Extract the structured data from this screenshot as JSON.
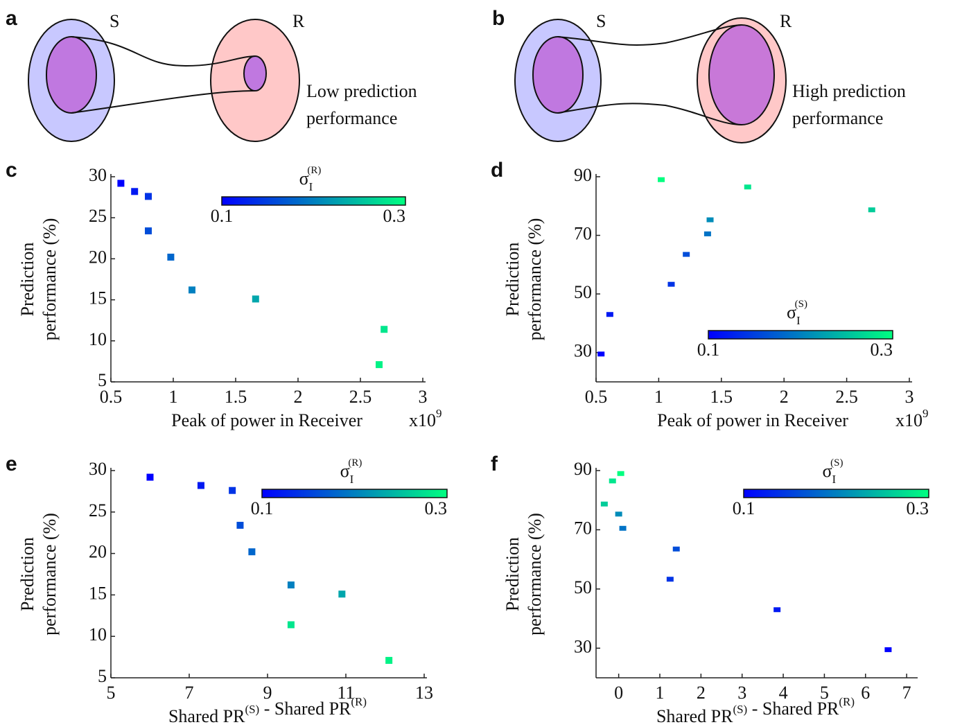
{
  "diagrams": [
    {
      "label": "a",
      "sender": "S",
      "receiver": "R",
      "caption": [
        "Low prediction",
        "performance"
      ]
    },
    {
      "label": "b",
      "sender": "S",
      "receiver": "R",
      "caption": [
        "High prediction",
        "performance"
      ]
    }
  ],
  "chart_data": [
    {
      "type": "scatter",
      "label": "c",
      "y_label": [
        "Prediction",
        "performance (%)"
      ],
      "x_label": {
        "text1": "Peak of power in Receiver"
      },
      "x_scale": {
        "base": "x10",
        "exp": "9"
      },
      "xlim": [
        0.5,
        3
      ],
      "xticks": [
        0.5,
        1,
        1.5,
        2,
        2.5,
        3
      ],
      "ylim": [
        5,
        30
      ],
      "yticks": [
        5,
        10,
        15,
        20,
        25,
        30
      ],
      "x": [
        0.58,
        0.69,
        0.8,
        0.8,
        0.98,
        1.15,
        1.66,
        2.69,
        2.65
      ],
      "values": [
        29.2,
        28.2,
        27.6,
        23.4,
        20.2,
        16.2,
        15.1,
        11.4,
        7.1
      ],
      "c": [
        0.1,
        0.12,
        0.14,
        0.16,
        0.18,
        0.2,
        0.23,
        0.28,
        0.29
      ],
      "colorbar": {
        "symbol": "σ",
        "sub": "I",
        "sup": "(R)",
        "range": [
          0.1,
          0.3
        ],
        "ticks": [
          0.1,
          0.3
        ],
        "colormap": [
          "#0000ff",
          "#00ff80"
        ]
      }
    },
    {
      "type": "scatter",
      "label": "d",
      "y_label": [
        "Prediction",
        "performance (%)"
      ],
      "x_label": {
        "text1": "Peak of power in Receiver"
      },
      "x_scale": {
        "base": "x10",
        "exp": "9"
      },
      "xlim": [
        0.5,
        3
      ],
      "xticks": [
        0.5,
        1,
        1.5,
        2,
        2.5,
        3
      ],
      "ylim": [
        20,
        90
      ],
      "yticks": [
        30,
        50,
        70,
        90
      ],
      "x": [
        0.54,
        0.61,
        1.1,
        1.22,
        1.39,
        1.41,
        2.7,
        1.71,
        1.02
      ],
      "values": [
        29.5,
        43,
        53.3,
        63.5,
        70.5,
        75.3,
        78.7,
        86.5,
        89
      ],
      "c": [
        0.1,
        0.12,
        0.14,
        0.16,
        0.19,
        0.21,
        0.26,
        0.28,
        0.3
      ],
      "colorbar": {
        "symbol": "σ",
        "sub": "I",
        "sup": "(S)",
        "range": [
          0.1,
          0.3
        ],
        "ticks": [
          0.1,
          0.3
        ],
        "colormap": [
          "#0000ff",
          "#00ff80"
        ]
      }
    },
    {
      "type": "scatter",
      "label": "e",
      "y_label": [
        "Prediction",
        "performance (%)"
      ],
      "x_label": {
        "text1": "Shared PR",
        "sup1": "(S)",
        "text2": " - Shared PR",
        "sup2": "(R)"
      },
      "xlim": [
        5,
        13
      ],
      "xticks": [
        5,
        7,
        9,
        11,
        13
      ],
      "ylim": [
        5,
        30
      ],
      "yticks": [
        5,
        10,
        15,
        20,
        25,
        30
      ],
      "x": [
        6.0,
        7.3,
        8.1,
        8.3,
        8.6,
        9.6,
        10.9,
        9.6,
        12.1
      ],
      "values": [
        29.2,
        28.2,
        27.6,
        23.4,
        20.2,
        16.2,
        15.1,
        11.4,
        7.1
      ],
      "c": [
        0.1,
        0.12,
        0.14,
        0.16,
        0.18,
        0.2,
        0.23,
        0.28,
        0.29
      ],
      "colorbar": {
        "symbol": "σ",
        "sub": "I",
        "sup": "(R)",
        "range": [
          0.1,
          0.3
        ],
        "ticks": [
          0.1,
          0.3
        ],
        "colormap": [
          "#0000ff",
          "#00ff80"
        ]
      }
    },
    {
      "type": "scatter",
      "label": "f",
      "y_label": [
        "Prediction",
        "performance (%)"
      ],
      "x_label": {
        "text1": "Shared PR",
        "sup1": "(S)",
        "text2": " - Shared PR",
        "sup2": "(R)"
      },
      "xlim": [
        -0.55,
        7.2
      ],
      "xticks": [
        0,
        1,
        2,
        3,
        4,
        5,
        6,
        7
      ],
      "ylim": [
        20,
        90
      ],
      "yticks": [
        30,
        50,
        70,
        90
      ],
      "x": [
        6.55,
        3.85,
        1.25,
        1.4,
        0.1,
        0.0,
        -0.35,
        -0.15,
        0.05
      ],
      "values": [
        29.5,
        43,
        53.3,
        63.5,
        70.5,
        75.3,
        78.7,
        86.5,
        89
      ],
      "c": [
        0.1,
        0.12,
        0.14,
        0.16,
        0.19,
        0.21,
        0.26,
        0.28,
        0.3
      ],
      "colorbar": {
        "symbol": "σ",
        "sub": "I",
        "sup": "(S)",
        "range": [
          0.1,
          0.3
        ],
        "ticks": [
          0.1,
          0.3
        ],
        "colormap": [
          "#0000ff",
          "#00ff80"
        ]
      }
    }
  ]
}
